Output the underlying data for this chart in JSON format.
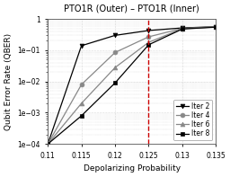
{
  "title": "PTO1R (Outer) – PTO1R (Inner)",
  "xlabel": "Depolarizing Probability",
  "ylabel": "Qubit Error Rate (QBER)",
  "xlim": [
    0.11,
    0.135
  ],
  "ylim": [
    0.0001,
    1.0
  ],
  "vline_x": 0.125,
  "vline_color": "#cc0000",
  "xticks": [
    0.11,
    0.115,
    0.12,
    0.125,
    0.13,
    0.135
  ],
  "xtick_labels": [
    "0.11",
    "0.115",
    "0.12",
    "0.125",
    "0.13",
    "0.135"
  ],
  "series": [
    {
      "label": "Iter 2",
      "marker": "v",
      "color": "#000000",
      "linestyle": "-",
      "x": [
        0.11,
        0.115,
        0.12,
        0.125,
        0.13,
        0.135
      ],
      "y": [
        0.0001,
        0.14,
        0.3,
        0.43,
        0.52,
        0.57
      ]
    },
    {
      "label": "Iter 4",
      "marker": "o",
      "color": "#888888",
      "linestyle": "-",
      "x": [
        0.11,
        0.115,
        0.12,
        0.125,
        0.13,
        0.135
      ],
      "y": [
        0.0001,
        0.008,
        0.085,
        0.27,
        0.5,
        0.56
      ]
    },
    {
      "label": "Iter 6",
      "marker": "^",
      "color": "#888888",
      "linestyle": "-",
      "x": [
        0.11,
        0.115,
        0.12,
        0.125,
        0.13,
        0.135
      ],
      "y": [
        0.0001,
        0.002,
        0.028,
        0.18,
        0.49,
        0.56
      ]
    },
    {
      "label": "Iter 8",
      "marker": "s",
      "color": "#000000",
      "linestyle": "-",
      "x": [
        0.11,
        0.115,
        0.12,
        0.125,
        0.13,
        0.135
      ],
      "y": [
        0.0001,
        0.0008,
        0.009,
        0.15,
        0.48,
        0.55
      ]
    }
  ],
  "background_color": "#ffffff",
  "grid_color": "#bbbbbb",
  "title_fontsize": 7.0,
  "axis_label_fontsize": 6.5,
  "tick_fontsize": 5.5,
  "legend_fontsize": 5.5,
  "markersize": 3.5,
  "linewidth": 0.9
}
